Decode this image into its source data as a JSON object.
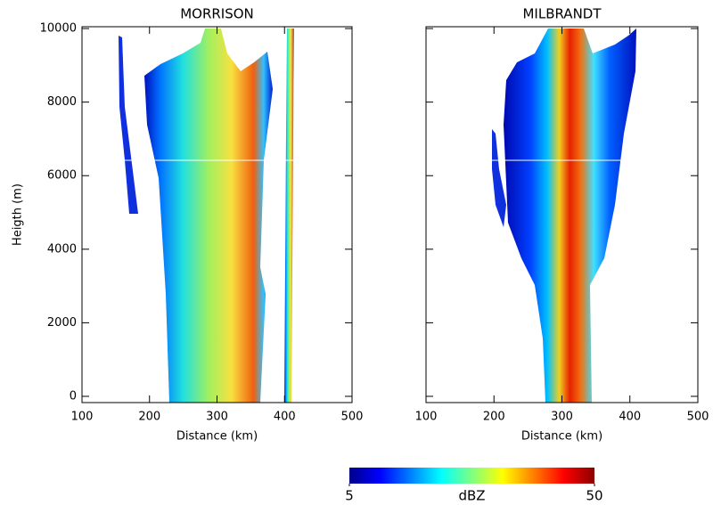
{
  "chart_data": [
    {
      "type": "heatmap",
      "title": "MORRISON",
      "x_label": "Distance (km)",
      "y_label": "Heigth (m)",
      "xlim": [
        100,
        500
      ],
      "ylim": [
        -170,
        10050
      ],
      "xticks": [
        100,
        200,
        300,
        400,
        500
      ],
      "yticks": [
        0,
        2000,
        4000,
        6000,
        8000,
        10000
      ],
      "ytick_labels": true
    },
    {
      "type": "heatmap",
      "title": "MILBRANDT",
      "x_label": "Distance (km)",
      "xlim": [
        100,
        500
      ],
      "ylim": [
        -170,
        10050
      ],
      "xticks": [
        100,
        200,
        300,
        400,
        500
      ],
      "yticks": [
        0,
        2000,
        4000,
        6000,
        8000,
        10000
      ],
      "ytick_labels": false
    }
  ],
  "colorbar": {
    "label": "dBZ",
    "lim": [
      5,
      50
    ],
    "ticks": [
      5,
      50
    ],
    "colors": [
      "#00008b",
      "#0000ff",
      "#0080ff",
      "#00ffff",
      "#80ff80",
      "#ffff00",
      "#ff8000",
      "#ff0000",
      "#8b0000"
    ]
  }
}
